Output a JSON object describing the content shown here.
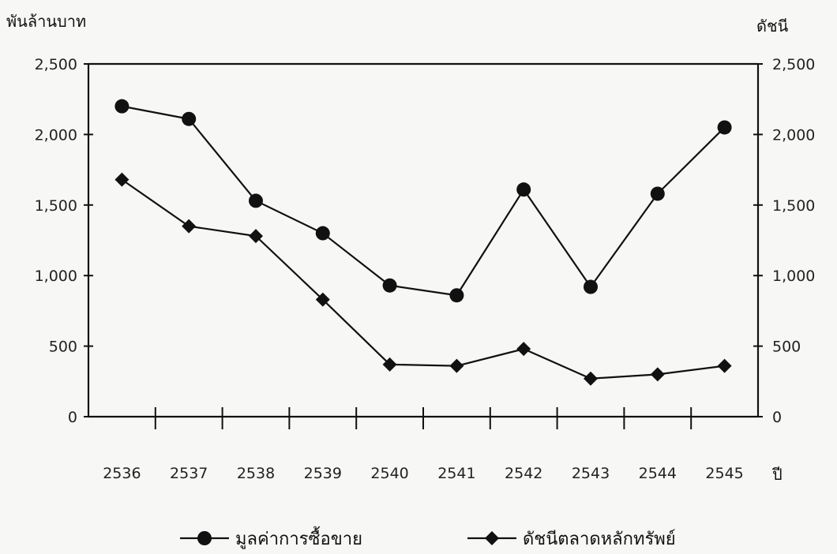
{
  "chart_data": {
    "type": "line",
    "title": "",
    "ylabel_left": "พันล้านบาท",
    "ylabel_right": "ดัชนี",
    "xlabel": "ปี",
    "categories": [
      "2536",
      "2537",
      "2538",
      "2539",
      "2540",
      "2541",
      "2542",
      "2543",
      "2544",
      "2545"
    ],
    "ylim": [
      0,
      2500
    ],
    "yticks": [
      "0",
      "500",
      "1,000",
      "1,500",
      "2,000",
      "2,500"
    ],
    "ytick_values": [
      0,
      500,
      1000,
      1500,
      2000,
      2500
    ],
    "grid": false,
    "legend_position": "bottom",
    "series": [
      {
        "name": "มูลค่าการซื้อขาย",
        "marker": "circle",
        "values": [
          2200,
          2110,
          1530,
          1300,
          930,
          860,
          1610,
          920,
          1580,
          2050
        ]
      },
      {
        "name": "ดัชนีตลาดหลักทรัพย์",
        "marker": "diamond",
        "values": [
          1680,
          1350,
          1280,
          830,
          370,
          360,
          480,
          270,
          300,
          360
        ]
      }
    ]
  }
}
